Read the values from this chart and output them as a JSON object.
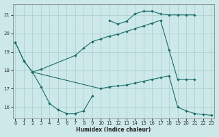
{
  "xlabel": "Humidex (Indice chaleur)",
  "bg_color": "#cce8e8",
  "line_color": "#1a6b6b",
  "grid_color": "#aacccc",
  "xlim": [
    -0.3,
    23.3
  ],
  "ylim": [
    15.4,
    21.6
  ],
  "yticks": [
    16,
    17,
    18,
    19,
    20,
    21
  ],
  "xticks": [
    0,
    1,
    2,
    3,
    4,
    5,
    6,
    7,
    8,
    9,
    10,
    11,
    12,
    13,
    14,
    15,
    16,
    17,
    18,
    19,
    20,
    21,
    22,
    23
  ],
  "line_top_jagged_x": [
    11,
    12,
    13,
    14,
    15,
    16,
    17,
    18,
    19,
    20,
    21
  ],
  "line_top_jagged_y": [
    20.7,
    20.5,
    20.65,
    21.05,
    21.2,
    21.2,
    21.05,
    21.0,
    21.0,
    21.0,
    21.0
  ],
  "line_upper_diag_x": [
    0,
    1,
    2,
    3,
    7,
    8,
    9,
    10,
    11,
    12,
    13,
    14,
    15,
    16,
    17,
    18,
    19,
    20,
    21
  ],
  "line_upper_diag_y": [
    19.5,
    18.5,
    17.9,
    18.05,
    18.8,
    19.2,
    19.55,
    19.7,
    19.85,
    19.95,
    20.1,
    20.25,
    20.4,
    20.55,
    20.7,
    19.1,
    17.5,
    17.5,
    17.5
  ],
  "line_lower_diag_x": [
    0,
    1,
    2,
    10,
    11,
    12,
    13,
    14,
    15,
    16,
    17,
    18,
    19,
    20,
    21,
    22,
    23
  ],
  "line_lower_diag_y": [
    19.5,
    18.5,
    17.9,
    17.0,
    17.1,
    17.15,
    17.2,
    17.3,
    17.4,
    17.5,
    17.6,
    17.7,
    16.0,
    15.8,
    15.65,
    15.6,
    15.55
  ],
  "line_bot_jagged_x": [
    2,
    3,
    4,
    5,
    6,
    7,
    8,
    9
  ],
  "line_bot_jagged_y": [
    17.9,
    17.1,
    16.2,
    15.85,
    15.65,
    15.65,
    15.8,
    16.6
  ]
}
